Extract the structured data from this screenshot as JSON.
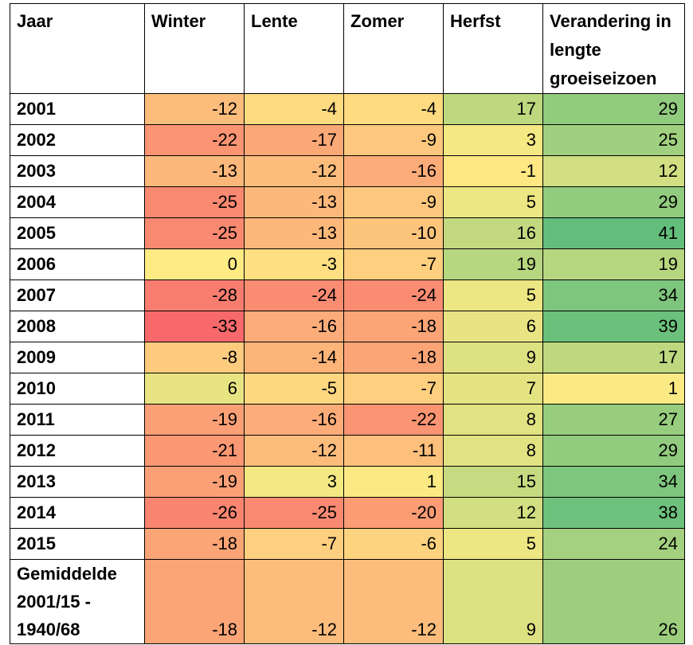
{
  "table": {
    "headers": [
      "Jaar",
      "Winter",
      "Lente",
      "Zomer",
      "Herfst",
      "Verandering in lengte groeiseizoen"
    ],
    "rows": [
      {
        "year": "2001",
        "values": [
          -12,
          -4,
          -4,
          17,
          29
        ]
      },
      {
        "year": "2002",
        "values": [
          -22,
          -17,
          -9,
          3,
          25
        ]
      },
      {
        "year": "2003",
        "values": [
          -13,
          -12,
          -16,
          -1,
          12
        ]
      },
      {
        "year": "2004",
        "values": [
          -25,
          -13,
          -9,
          5,
          29
        ]
      },
      {
        "year": "2005",
        "values": [
          -25,
          -13,
          -10,
          16,
          41
        ]
      },
      {
        "year": "2006",
        "values": [
          0,
          -3,
          -7,
          19,
          19
        ]
      },
      {
        "year": "2007",
        "values": [
          -28,
          -24,
          -24,
          5,
          34
        ]
      },
      {
        "year": "2008",
        "values": [
          -33,
          -16,
          -18,
          6,
          39
        ]
      },
      {
        "year": "2009",
        "values": [
          -8,
          -14,
          -18,
          9,
          17
        ]
      },
      {
        "year": "2010",
        "values": [
          6,
          -5,
          -7,
          7,
          1
        ]
      },
      {
        "year": "2011",
        "values": [
          -19,
          -16,
          -22,
          8,
          27
        ]
      },
      {
        "year": "2012",
        "values": [
          -21,
          -12,
          -11,
          8,
          29
        ]
      },
      {
        "year": "2013",
        "values": [
          -19,
          3,
          1,
          15,
          34
        ]
      },
      {
        "year": "2014",
        "values": [
          -26,
          -25,
          -20,
          12,
          38
        ]
      },
      {
        "year": "2015",
        "values": [
          -18,
          -7,
          -6,
          5,
          24
        ]
      }
    ],
    "average": {
      "label": "Gemiddelde 2001/15 - 1940/68",
      "values": [
        -18,
        -12,
        -12,
        9,
        26
      ]
    }
  },
  "colors": {
    "low": "#f8696b",
    "mid": "#ffeb84",
    "high": "#63be7b"
  }
}
